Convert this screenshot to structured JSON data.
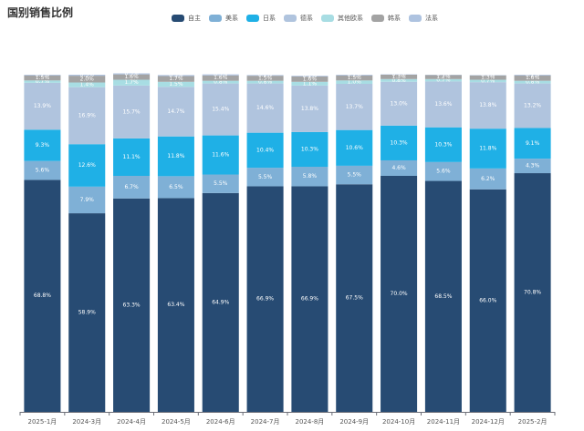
{
  "chart_data": {
    "type": "bar",
    "stacked": true,
    "title": "国别销售比例",
    "xlabel": "",
    "ylabel": "",
    "ylim": [
      0,
      100
    ],
    "grid": false,
    "legend_position": "top-center",
    "categories": [
      "2025-1月",
      "2024-3月",
      "2024-4月",
      "2024-5月",
      "2024-6月",
      "2024-7月",
      "2024-8月",
      "2024-9月",
      "2024-10月",
      "2024-11月",
      "2024-12月",
      "2025-2月"
    ],
    "series": [
      {
        "name": "自主",
        "color": "#274b73",
        "values": [
          68.8,
          58.9,
          63.3,
          63.4,
          64.9,
          66.9,
          66.9,
          67.5,
          70.0,
          68.5,
          66.0,
          70.8
        ]
      },
      {
        "name": "美系",
        "color": "#7fb0d6",
        "values": [
          5.6,
          7.9,
          6.7,
          6.5,
          5.5,
          5.5,
          5.8,
          5.5,
          4.6,
          5.6,
          6.2,
          4.3
        ]
      },
      {
        "name": "日系",
        "color": "#1fb0e6",
        "values": [
          9.3,
          12.6,
          11.1,
          11.8,
          11.6,
          10.4,
          10.3,
          10.6,
          10.3,
          10.3,
          11.8,
          9.1
        ]
      },
      {
        "name": "德系",
        "color": "#b0c4de",
        "values": [
          13.9,
          16.9,
          15.7,
          14.7,
          15.4,
          14.6,
          13.8,
          13.7,
          13.0,
          13.6,
          13.8,
          13.2
        ]
      },
      {
        "name": "其他欧系",
        "color": "#a8dde3",
        "values": [
          0.7,
          1.4,
          1.7,
          1.5,
          0.8,
          0.8,
          1.1,
          1.0,
          0.8,
          0.7,
          0.7,
          0.8
        ]
      },
      {
        "name": "韩系",
        "color": "#a3a3a3",
        "values": [
          1.5,
          2.0,
          1.6,
          1.7,
          1.6,
          1.5,
          1.6,
          1.5,
          1.3,
          1.2,
          1.3,
          1.6
        ]
      },
      {
        "name": "法系",
        "color": "#aec3e0",
        "values": [
          0.2,
          0.3,
          0.3,
          0.3,
          0.3,
          0.2,
          0.2,
          0.2,
          0.1,
          0.1,
          0.1,
          0.2
        ]
      }
    ],
    "value_suffix": "%"
  }
}
